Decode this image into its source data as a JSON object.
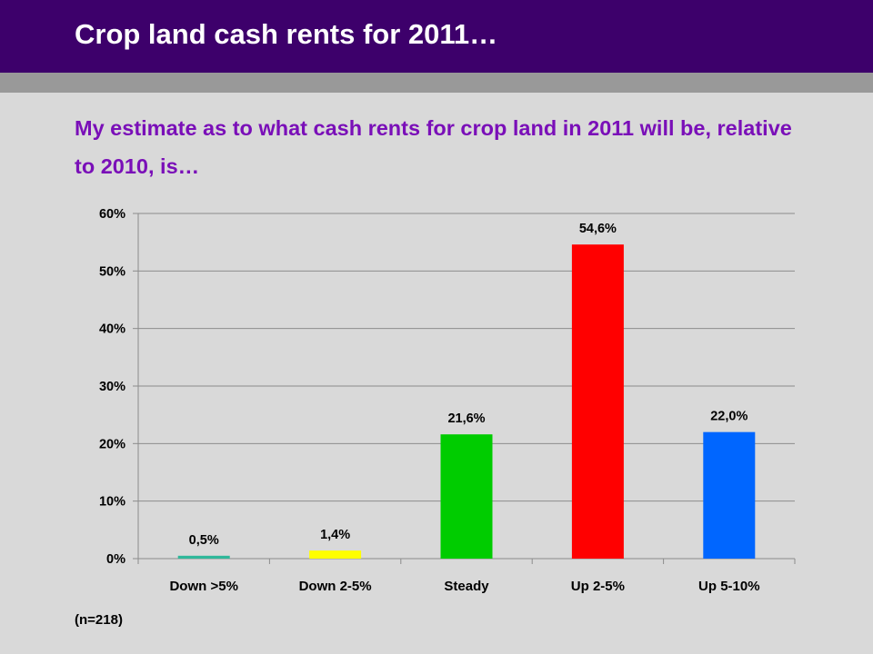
{
  "slide": {
    "title": "Crop land cash rents for 2011…",
    "subtitle": "My estimate as to what cash rents for crop land in 2011 will be, relative to 2010, is…",
    "note": "(n=218)"
  },
  "colors": {
    "title_bar": "#3d006b",
    "band": "#999999",
    "background": "#d9d9d9",
    "subtitle": "#7a0fb8"
  },
  "chart_data": {
    "type": "bar",
    "categories": [
      "Down >5%",
      "Down 2-5%",
      "Steady",
      "Up 2-5%",
      "Up 5-10%"
    ],
    "values": [
      0.5,
      1.4,
      21.6,
      54.6,
      22.0
    ],
    "data_labels": [
      "0,5%",
      "1,4%",
      "21,6%",
      "54,6%",
      "22,0%"
    ],
    "bar_colors": [
      "#2fb89a",
      "#ffff00",
      "#00cc00",
      "#ff0000",
      "#0066ff"
    ],
    "ylim": [
      0,
      60
    ],
    "yticks": [
      0,
      10,
      20,
      30,
      40,
      50,
      60
    ],
    "ytick_labels": [
      "0%",
      "10%",
      "20%",
      "30%",
      "40%",
      "50%",
      "60%"
    ],
    "grid": true,
    "legend": "none"
  }
}
